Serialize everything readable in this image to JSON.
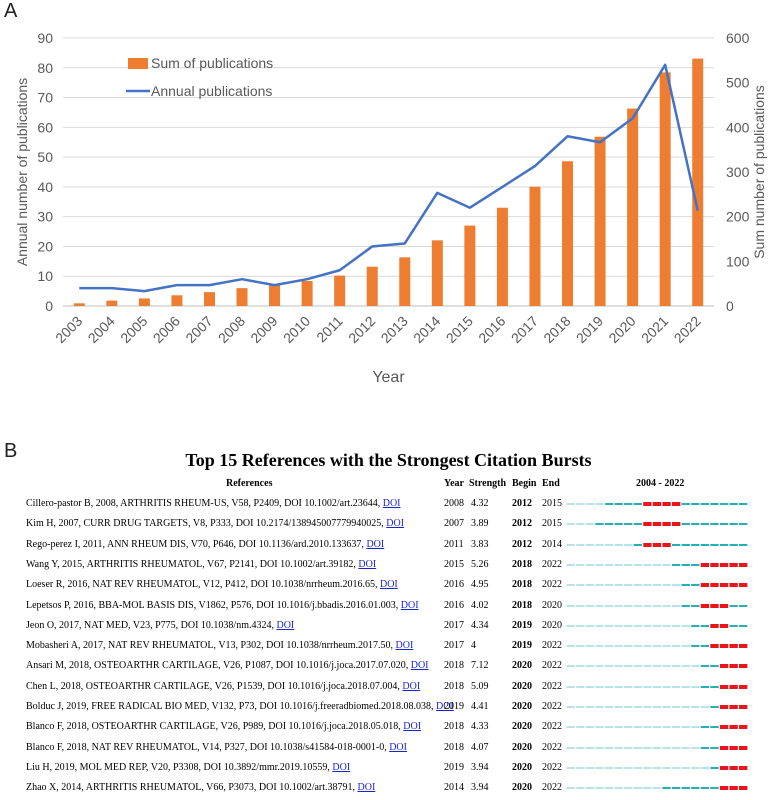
{
  "panelA_label": "A",
  "panelB_label": "B",
  "chart_data": {
    "type": "bar+line",
    "categories": [
      "2003",
      "2004",
      "2005",
      "2006",
      "2007",
      "2008",
      "2009",
      "2010",
      "2011",
      "2012",
      "2013",
      "2014",
      "2015",
      "2016",
      "2017",
      "2018",
      "2019",
      "2020",
      "2021",
      "2022"
    ],
    "series": [
      {
        "name": "Sum of publications",
        "type": "bar",
        "axis": "right",
        "color": "#ED7D31",
        "values": [
          6,
          12,
          17,
          24,
          31,
          40,
          47,
          56,
          68,
          88,
          109,
          147,
          180,
          220,
          267,
          324,
          379,
          442,
          523,
          554
        ]
      },
      {
        "name": "Annual publications",
        "type": "line",
        "axis": "left",
        "color": "#4472C4",
        "values": [
          6,
          6,
          5,
          7,
          7,
          9,
          7,
          9,
          12,
          20,
          21,
          38,
          33,
          40,
          47,
          57,
          55,
          63,
          81,
          32
        ]
      }
    ],
    "xlabel": "Year",
    "ylabel_left": "Annual number of publications",
    "ylabel_right": "Sum number of publications",
    "ylim_left": [
      0,
      90
    ],
    "ylim_right": [
      0,
      600
    ],
    "yticks_left": [
      "0",
      "10",
      "20",
      "30",
      "40",
      "50",
      "60",
      "70",
      "80",
      "90"
    ],
    "yticks_right": [
      "0",
      "100",
      "200",
      "300",
      "400",
      "500",
      "600"
    ],
    "legend": [
      "Sum of publications",
      "Annual publications"
    ],
    "legend_position": "top-left"
  },
  "bursts": {
    "title": "Top 15 References with the Strongest Citation Bursts",
    "headers": {
      "references": "References",
      "year": "Year",
      "strength": "Strength",
      "begin": "Begin",
      "end": "End",
      "range": "2004 - 2022"
    },
    "range_start": 2004,
    "range_end": 2022,
    "colors": {
      "light": "#b8e3e8",
      "active": "#26b0b3",
      "burst": "#e8161c"
    },
    "rows": [
      {
        "ref": "Cillero-pastor B, 2008, ARTHRITIS RHEUM-US, V58, P2409, DOI 10.1002/art.23644,",
        "doi": "DOI",
        "year": "2008",
        "strength": "4.32",
        "begin": "2012",
        "end": "2015"
      },
      {
        "ref": "Kim H, 2007, CURR DRUG TARGETS, V8, P333, DOI 10.2174/138945007779940025,",
        "doi": "DOI",
        "year": "2007",
        "strength": "3.89",
        "begin": "2012",
        "end": "2015"
      },
      {
        "ref": "Rego-perez I, 2011, ANN RHEUM DIS, V70, P646, DOI 10.1136/ard.2010.133637,",
        "doi": "DOI",
        "year": "2011",
        "strength": "3.83",
        "begin": "2012",
        "end": "2014"
      },
      {
        "ref": "Wang Y, 2015, ARTHRITIS RHEUMATOL, V67, P2141, DOI 10.1002/art.39182,",
        "doi": "DOI",
        "year": "2015",
        "strength": "5.26",
        "begin": "2018",
        "end": "2022"
      },
      {
        "ref": "Loeser R, 2016, NAT REV RHEUMATOL, V12, P412, DOI 10.1038/nrrheum.2016.65,",
        "doi": "DOI",
        "year": "2016",
        "strength": "4.95",
        "begin": "2018",
        "end": "2022"
      },
      {
        "ref": "Lepetsos P, 2016, BBA-MOL BASIS DIS, V1862, P576, DOI 10.1016/j.bbadis.2016.01.003,",
        "doi": "DOI",
        "year": "2016",
        "strength": "4.02",
        "begin": "2018",
        "end": "2020"
      },
      {
        "ref": "Jeon O, 2017, NAT MED, V23, P775, DOI 10.1038/nm.4324,",
        "doi": "DOI",
        "year": "2017",
        "strength": "4.34",
        "begin": "2019",
        "end": "2020"
      },
      {
        "ref": "Mobasheri A, 2017, NAT REV RHEUMATOL, V13, P302, DOI 10.1038/nrrheum.2017.50,",
        "doi": "DOI",
        "year": "2017",
        "strength": "4",
        "begin": "2019",
        "end": "2022"
      },
      {
        "ref": "Ansari M, 2018, OSTEOARTHR CARTILAGE, V26, P1087, DOI 10.1016/j.joca.2017.07.020,",
        "doi": "DOI",
        "year": "2018",
        "strength": "7.12",
        "begin": "2020",
        "end": "2022"
      },
      {
        "ref": "Chen L, 2018, OSTEOARTHR CARTILAGE, V26, P1539, DOI 10.1016/j.joca.2018.07.004,",
        "doi": "DOI",
        "year": "2018",
        "strength": "5.09",
        "begin": "2020",
        "end": "2022"
      },
      {
        "ref": "Bolduc J, 2019, FREE RADICAL BIO MED, V132, P73, DOI 10.1016/j.freeradbiomed.2018.08.038,",
        "doi": "DOI",
        "year": "2019",
        "strength": "4.41",
        "begin": "2020",
        "end": "2022"
      },
      {
        "ref": "Blanco F, 2018, OSTEOARTHR CARTILAGE, V26, P989, DOI 10.1016/j.joca.2018.05.018,",
        "doi": "DOI",
        "year": "2018",
        "strength": "4.33",
        "begin": "2020",
        "end": "2022"
      },
      {
        "ref": "Blanco F, 2018, NAT REV RHEUMATOL, V14, P327, DOI 10.1038/s41584-018-0001-0,",
        "doi": "DOI",
        "year": "2018",
        "strength": "4.07",
        "begin": "2020",
        "end": "2022"
      },
      {
        "ref": "Liu H, 2019, MOL MED REP, V20, P3308, DOI 10.3892/mmr.2019.10559,",
        "doi": "DOI",
        "year": "2019",
        "strength": "3.94",
        "begin": "2020",
        "end": "2022"
      },
      {
        "ref": "Zhao X, 2014, ARTHRITIS RHEUMATOL, V66, P3073, DOI 10.1002/art.38791,",
        "doi": "DOI",
        "year": "2014",
        "strength": "3.94",
        "begin": "2020",
        "end": "2022"
      }
    ]
  }
}
